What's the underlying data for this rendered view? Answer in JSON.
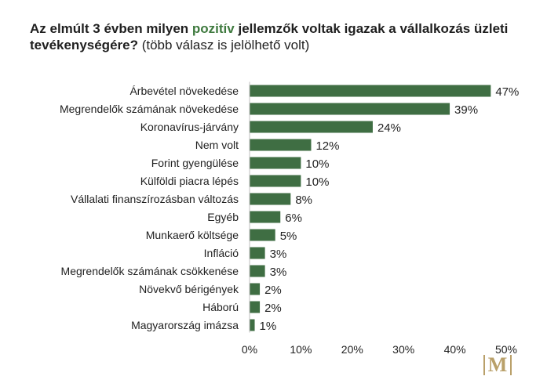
{
  "title": {
    "part1": "Az elmúlt 3 évben milyen ",
    "highlight": "pozitív",
    "part2": " jellemzők voltak igazak a vállalkozás üzleti tevékenységére?",
    "note": " (több válasz is jelölhető volt)"
  },
  "colors": {
    "bar": "#3f6e43",
    "highlight": "#3f7a3f",
    "logo": "#b9a06a"
  },
  "logo": {
    "text": "M"
  },
  "chart_data": {
    "type": "bar",
    "orientation": "horizontal",
    "categories": [
      "Árbevétel növekedése",
      "Megrendelők számának növekedése",
      "Koronavírus-járvány",
      "Nem volt",
      "Forint gyengülése",
      "Külföldi piacra lépés",
      "Vállalati finanszírozásban változás",
      "Egyéb",
      "Munkaerő költsége",
      "Infláció",
      "Megrendelők számának csökkenése",
      "Növekvő bérigények",
      "Háború",
      "Magyarország imázsa"
    ],
    "values": [
      47,
      39,
      24,
      12,
      10,
      10,
      8,
      6,
      5,
      3,
      3,
      2,
      2,
      1
    ],
    "value_labels": [
      "47%",
      "39%",
      "24%",
      "12%",
      "10%",
      "10%",
      "8%",
      "6%",
      "5%",
      "3%",
      "3%",
      "2%",
      "2%",
      "1%"
    ],
    "xlim": [
      0,
      50
    ],
    "xticks": [
      "0%",
      "10%",
      "20%",
      "30%",
      "40%",
      "50%"
    ],
    "grid": false,
    "legend": "none"
  }
}
